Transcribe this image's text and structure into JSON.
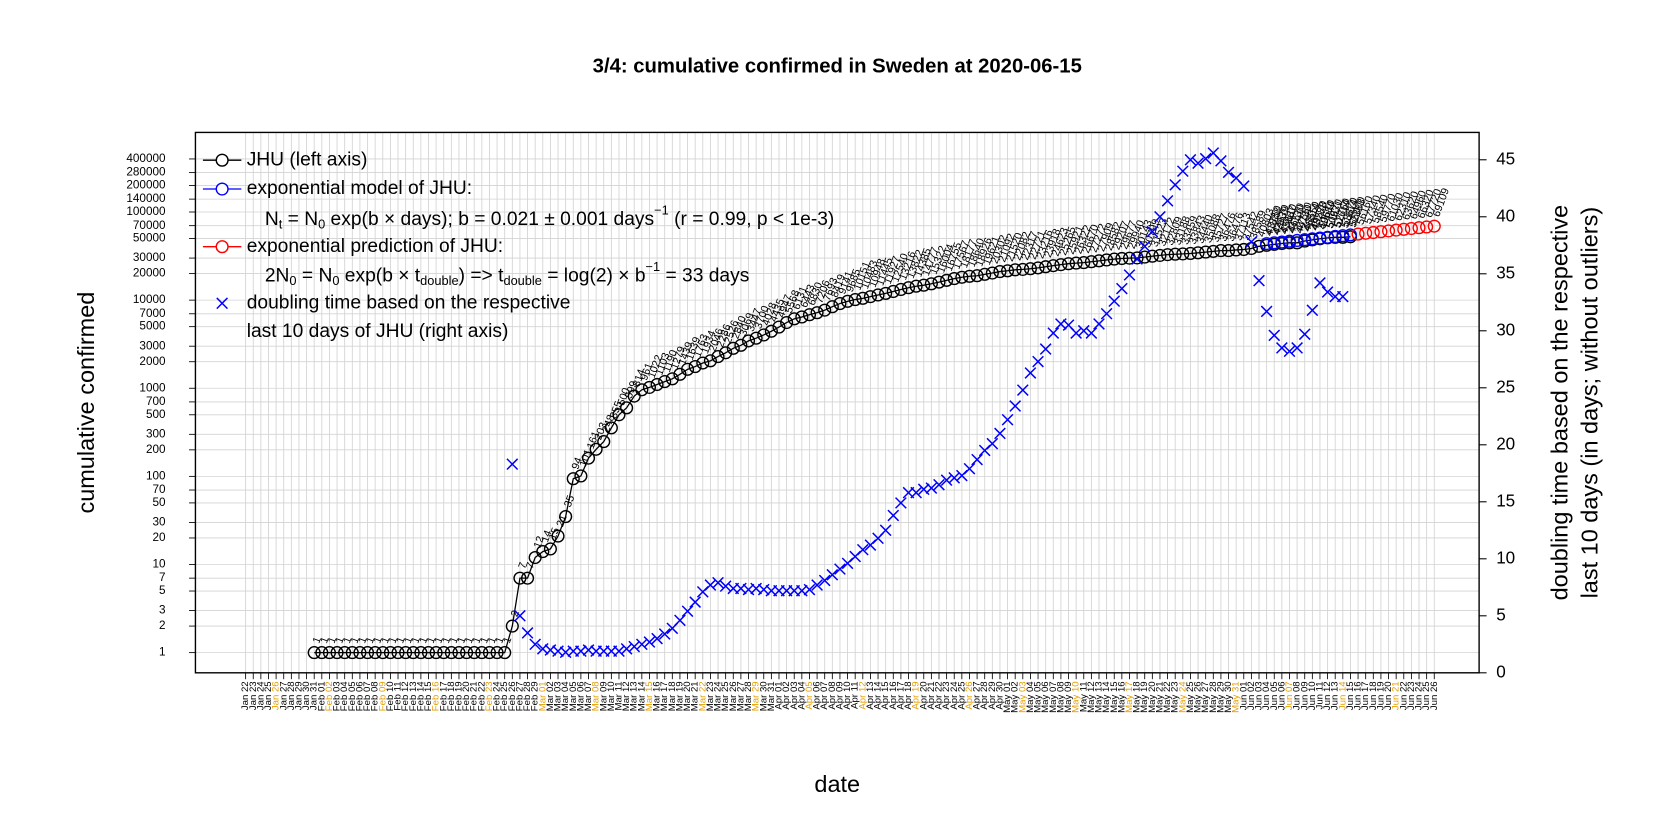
{
  "chart_data": {
    "type": "line",
    "title": "3/4: cumulative confirmed in Sweden at 2020-06-15",
    "xlabel": "date",
    "ylabel": "cumulative confirmed",
    "y2label": [
      "doubling time based on the respective",
      "last 10 days (in days; without outliers)"
    ],
    "log_y": true,
    "grid": true,
    "legend": "top-left",
    "ylim": [
      0.59,
      800000
    ],
    "yticks": [
      1,
      2,
      3,
      5,
      7,
      10,
      20,
      30,
      50,
      70,
      100,
      200,
      300,
      500,
      700,
      1000,
      2000,
      3000,
      5000,
      7000,
      10000,
      20000,
      30000,
      50000,
      70000,
      100000,
      140000,
      200000,
      280000,
      400000
    ],
    "y2lim": [
      0,
      47.4
    ],
    "y2ticks": [
      0,
      5,
      10,
      15,
      20,
      25,
      30,
      35,
      40,
      45
    ],
    "model_formula": [
      "N",
      "t",
      " = N",
      "0",
      " exp(b × days); b = 0.021 ± 0.001 days",
      "−1",
      " (r = 0.99, p < 1e-3)"
    ],
    "prediction_formula": [
      "2N",
      "0",
      " = N",
      "0",
      " exp(b × t",
      "double",
      ") => t",
      "double",
      " = log(2) × b",
      "−1",
      " = 33 days"
    ],
    "legend_note": "last 10 days of JHU (right axis)",
    "categories": [
      "Jan 22",
      "Jan 23",
      "Jan 24",
      "Jan 25",
      "Jan 26",
      "Jan 27",
      "Jan 28",
      "Jan 29",
      "Jan 30",
      "Jan 31",
      "Feb 01",
      "Feb 02",
      "Feb 03",
      "Feb 04",
      "Feb 05",
      "Feb 06",
      "Feb 07",
      "Feb 08",
      "Feb 09",
      "Feb 10",
      "Feb 11",
      "Feb 12",
      "Feb 13",
      "Feb 14",
      "Feb 15",
      "Feb 16",
      "Feb 17",
      "Feb 18",
      "Feb 19",
      "Feb 20",
      "Feb 21",
      "Feb 22",
      "Feb 23",
      "Feb 24",
      "Feb 25",
      "Feb 26",
      "Feb 27",
      "Feb 28",
      "Feb 29",
      "Mar 01",
      "Mar 02",
      "Mar 03",
      "Mar 04",
      "Mar 05",
      "Mar 06",
      "Mar 07",
      "Mar 08",
      "Mar 09",
      "Mar 10",
      "Mar 11",
      "Mar 12",
      "Mar 13",
      "Mar 14",
      "Mar 15",
      "Mar 16",
      "Mar 17",
      "Mar 18",
      "Mar 19",
      "Mar 20",
      "Mar 21",
      "Mar 22",
      "Mar 23",
      "Mar 24",
      "Mar 25",
      "Mar 26",
      "Mar 27",
      "Mar 28",
      "Mar 29",
      "Mar 30",
      "Mar 31",
      "Apr 01",
      "Apr 02",
      "Apr 03",
      "Apr 04",
      "Apr 05",
      "Apr 06",
      "Apr 07",
      "Apr 08",
      "Apr 09",
      "Apr 10",
      "Apr 11",
      "Apr 12",
      "Apr 13",
      "Apr 14",
      "Apr 15",
      "Apr 16",
      "Apr 17",
      "Apr 18",
      "Apr 19",
      "Apr 20",
      "Apr 21",
      "Apr 22",
      "Apr 23",
      "Apr 24",
      "Apr 25",
      "Apr 26",
      "Apr 27",
      "Apr 28",
      "Apr 29",
      "Apr 30",
      "May 01",
      "May 02",
      "May 03",
      "May 04",
      "May 05",
      "May 06",
      "May 07",
      "May 08",
      "May 09",
      "May 10",
      "May 11",
      "May 12",
      "May 13",
      "May 14",
      "May 15",
      "May 16",
      "May 17",
      "May 18",
      "May 19",
      "May 20",
      "May 21",
      "May 22",
      "May 23",
      "May 24",
      "May 25",
      "May 26",
      "May 27",
      "May 28",
      "May 29",
      "May 30",
      "May 31",
      "Jun 01",
      "Jun 02",
      "Jun 03",
      "Jun 04",
      "Jun 05",
      "Jun 06",
      "Jun 07",
      "Jun 08",
      "Jun 09",
      "Jun 10",
      "Jun 11",
      "Jun 12",
      "Jun 13",
      "Jun 14",
      "Jun 15",
      "Jun 16",
      "Jun 17",
      "Jun 18",
      "Jun 19",
      "Jun 20",
      "Jun 21",
      "Jun 22",
      "Jun 23",
      "Jun 24",
      "Jun 25",
      "Jun 26"
    ],
    "series": [
      {
        "name": "JHU (left axis)",
        "color": "#000000",
        "marker": "circle",
        "line": true,
        "labels": true,
        "values": [
          null,
          null,
          null,
          null,
          null,
          null,
          null,
          null,
          null,
          1,
          1,
          1,
          1,
          1,
          1,
          1,
          1,
          1,
          1,
          1,
          1,
          1,
          1,
          1,
          1,
          1,
          1,
          1,
          1,
          1,
          1,
          1,
          1,
          1,
          1,
          2,
          7,
          7,
          12,
          14,
          15,
          21,
          35,
          94,
          101,
          161,
          203,
          248,
          355,
          500,
          599,
          814,
          961,
          1022,
          1103,
          1190,
          1279,
          1439,
          1639,
          1763,
          1934,
          2046,
          2286,
          2526,
          2840,
          3069,
          3447,
          3700,
          4028,
          4435,
          4947,
          5568,
          6131,
          6443,
          6830,
          7206,
          7693,
          8419,
          9141,
          9685,
          10151,
          10483,
          10948,
          11445,
          11927,
          12540,
          13216,
          13822,
          14385,
          14777,
          15322,
          16004,
          16755,
          17567,
          18177,
          18640,
          18926,
          19621,
          20302,
          21092,
          21520,
          22082,
          22317,
          22721,
          23216,
          23918,
          24623,
          25265,
          25921,
          26322,
          26670,
          27272,
          27909,
          28582,
          29207,
          29677,
          29940,
          30143,
          30799,
          31523,
          32172,
          32809,
          33188,
          33459,
          33843,
          34440,
          35088,
          35727,
          36476,
          36476,
          37113,
          37542,
          38589,
          40803,
          41883,
          42939,
          43887,
          44730,
          44730,
          46814,
          48288,
          49684,
          50931,
          51614,
          51614,
          52383,
          null,
          null,
          null,
          null,
          null,
          null,
          null,
          null,
          null,
          null,
          null
        ]
      },
      {
        "name": "exponential model of JHU:",
        "color": "#0000ff",
        "marker": "circle",
        "line": false,
        "labels": true,
        "values": [
          null,
          null,
          null,
          null,
          null,
          null,
          null,
          null,
          null,
          null,
          null,
          null,
          null,
          null,
          null,
          null,
          null,
          null,
          null,
          null,
          null,
          null,
          null,
          null,
          null,
          null,
          null,
          null,
          null,
          null,
          null,
          null,
          null,
          null,
          null,
          null,
          null,
          null,
          null,
          null,
          null,
          null,
          null,
          null,
          null,
          null,
          null,
          null,
          null,
          null,
          null,
          null,
          null,
          null,
          null,
          null,
          null,
          null,
          null,
          null,
          null,
          null,
          null,
          null,
          null,
          null,
          null,
          null,
          null,
          null,
          null,
          null,
          null,
          null,
          null,
          null,
          null,
          null,
          null,
          null,
          null,
          null,
          null,
          null,
          null,
          null,
          null,
          null,
          null,
          null,
          null,
          null,
          null,
          null,
          null,
          null,
          null,
          null,
          null,
          null,
          null,
          null,
          null,
          null,
          null,
          null,
          null,
          null,
          null,
          null,
          null,
          null,
          null,
          null,
          null,
          null,
          null,
          null,
          null,
          null,
          null,
          null,
          null,
          null,
          null,
          null,
          null,
          null,
          null,
          null,
          null,
          null,
          null,
          null,
          43750,
          44670,
          45610,
          46570,
          47550,
          48550,
          49570,
          50610,
          51670,
          52760,
          53870,
          55000,
          null,
          null,
          null,
          null,
          null,
          null,
          null,
          null,
          null,
          null,
          null
        ]
      },
      {
        "name": "exponential prediction of JHU:",
        "color": "#ff0000",
        "marker": "circle",
        "line": false,
        "labels": true,
        "values": [
          null,
          null,
          null,
          null,
          null,
          null,
          null,
          null,
          null,
          null,
          null,
          null,
          null,
          null,
          null,
          null,
          null,
          null,
          null,
          null,
          null,
          null,
          null,
          null,
          null,
          null,
          null,
          null,
          null,
          null,
          null,
          null,
          null,
          null,
          null,
          null,
          null,
          null,
          null,
          null,
          null,
          null,
          null,
          null,
          null,
          null,
          null,
          null,
          null,
          null,
          null,
          null,
          null,
          null,
          null,
          null,
          null,
          null,
          null,
          null,
          null,
          null,
          null,
          null,
          null,
          null,
          null,
          null,
          null,
          null,
          null,
          null,
          null,
          null,
          null,
          null,
          null,
          null,
          null,
          null,
          null,
          null,
          null,
          null,
          null,
          null,
          null,
          null,
          null,
          null,
          null,
          null,
          null,
          null,
          null,
          null,
          null,
          null,
          null,
          null,
          null,
          null,
          null,
          null,
          null,
          null,
          null,
          null,
          null,
          null,
          null,
          null,
          null,
          null,
          null,
          null,
          null,
          null,
          null,
          null,
          null,
          null,
          null,
          null,
          null,
          null,
          null,
          null,
          null,
          null,
          null,
          null,
          null,
          null,
          null,
          null,
          null,
          null,
          null,
          null,
          null,
          null,
          null,
          null,
          null,
          null,
          56160,
          57340,
          58540,
          59770,
          61030,
          62310,
          63620,
          64960,
          66320,
          67720,
          69109
        ]
      },
      {
        "name": "doubling time based on the respective",
        "color": "#0000ff",
        "marker": "x",
        "line": false,
        "labels": false,
        "axis": "y2",
        "values": [
          null,
          null,
          null,
          null,
          null,
          null,
          null,
          null,
          null,
          null,
          null,
          null,
          null,
          null,
          null,
          null,
          null,
          null,
          null,
          null,
          null,
          null,
          null,
          null,
          null,
          null,
          null,
          null,
          null,
          null,
          null,
          null,
          null,
          null,
          null,
          18.3,
          5,
          3.5,
          2.5,
          2.1,
          2,
          1.9,
          1.8,
          1.9,
          1.9,
          2,
          1.9,
          1.9,
          1.9,
          1.9,
          2.1,
          2.3,
          2.5,
          2.7,
          3,
          3.4,
          3.9,
          4.6,
          5.4,
          6.2,
          7.1,
          7.7,
          7.9,
          7.6,
          7.4,
          7.4,
          7.3,
          7.4,
          7.3,
          7.2,
          7.2,
          7.2,
          7.2,
          7.2,
          7.3,
          7.7,
          8.1,
          8.6,
          9.1,
          9.6,
          10.2,
          10.8,
          11.2,
          11.8,
          12.5,
          13.8,
          14.9,
          15.8,
          15.8,
          16.1,
          16.2,
          16.5,
          16.9,
          17.1,
          17.3,
          17.9,
          18.7,
          19.5,
          20.1,
          21.0,
          22.2,
          23.4,
          24.8,
          26.3,
          27.3,
          28.4,
          29.8,
          30.6,
          30.5,
          29.8,
          30.0,
          29.8,
          30.6,
          31.5,
          32.6,
          33.7,
          34.9,
          36.3,
          37.4,
          38.7,
          40.0,
          41.4,
          42.8,
          44.0,
          45.0,
          44.7,
          45.1,
          45.6,
          44.9,
          43.9,
          43.4,
          42.7,
          37.8,
          34.4,
          31.7,
          29.6,
          28.5,
          28.2,
          28.5,
          29.7,
          31.8,
          34.2,
          33.4,
          33.0,
          33.0,
          null,
          null,
          null,
          null,
          null,
          null,
          null,
          null,
          null,
          null,
          null,
          null
        ]
      }
    ]
  }
}
